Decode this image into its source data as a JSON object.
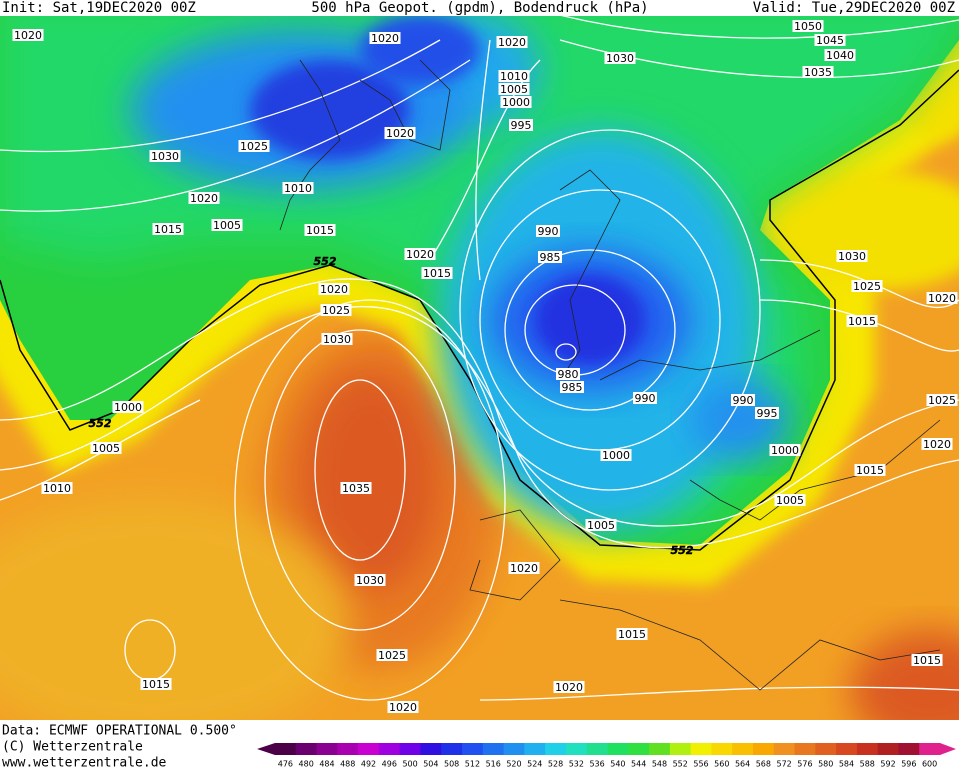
{
  "header": {
    "init": "Init: Sat,19DEC2020 00Z",
    "title": "500 hPa Geopot. (gpdm), Bodendruck (hPa)",
    "valid": "Valid: Tue,29DEC2020 00Z"
  },
  "isobar_labels": [
    1020,
    1020,
    1020,
    1030,
    1050,
    1045,
    1040,
    1035,
    1010,
    1005,
    1000,
    995,
    1025,
    1020,
    1030,
    1010,
    1020,
    1015,
    1005,
    1015,
    990,
    1020,
    1015,
    985,
    1030,
    1025,
    1020,
    1015,
    1020,
    1025,
    1030,
    980,
    985,
    990,
    990,
    995,
    1025,
    1000,
    1020,
    1005,
    1000,
    1000,
    1015,
    1010,
    1035,
    1005,
    1005,
    1020,
    1030,
    1015,
    1025,
    1015,
    1015,
    1020,
    1020
  ],
  "contour_labels": [
    552,
    552,
    552
  ],
  "footer": {
    "data": "Data: ECMWF OPERATIONAL 0.500°",
    "copyright": "(C) Wetterzentrale",
    "url": "www.wetterzentrale.de"
  },
  "scale": {
    "values": [
      476,
      480,
      484,
      488,
      492,
      496,
      500,
      504,
      508,
      512,
      516,
      520,
      524,
      528,
      532,
      536,
      540,
      544,
      548,
      552,
      556,
      560,
      564,
      568,
      572,
      576,
      580,
      584,
      588,
      592,
      596,
      600
    ],
    "colors": [
      "#4b0048",
      "#6a0070",
      "#8a0090",
      "#a800b0",
      "#c800d0",
      "#a000e0",
      "#7000e8",
      "#3010e0",
      "#2030e8",
      "#2050f0",
      "#2070f0",
      "#2090f0",
      "#20b0f0",
      "#20d0e8",
      "#20e0c0",
      "#20e090",
      "#20e060",
      "#30e040",
      "#60e020",
      "#b0f010",
      "#f0f000",
      "#f8d800",
      "#f8c000",
      "#f8a800",
      "#f09020",
      "#e87820",
      "#e06020",
      "#d84820",
      "#c83020",
      "#b02020",
      "#a01030",
      "#e0208c"
    ]
  }
}
